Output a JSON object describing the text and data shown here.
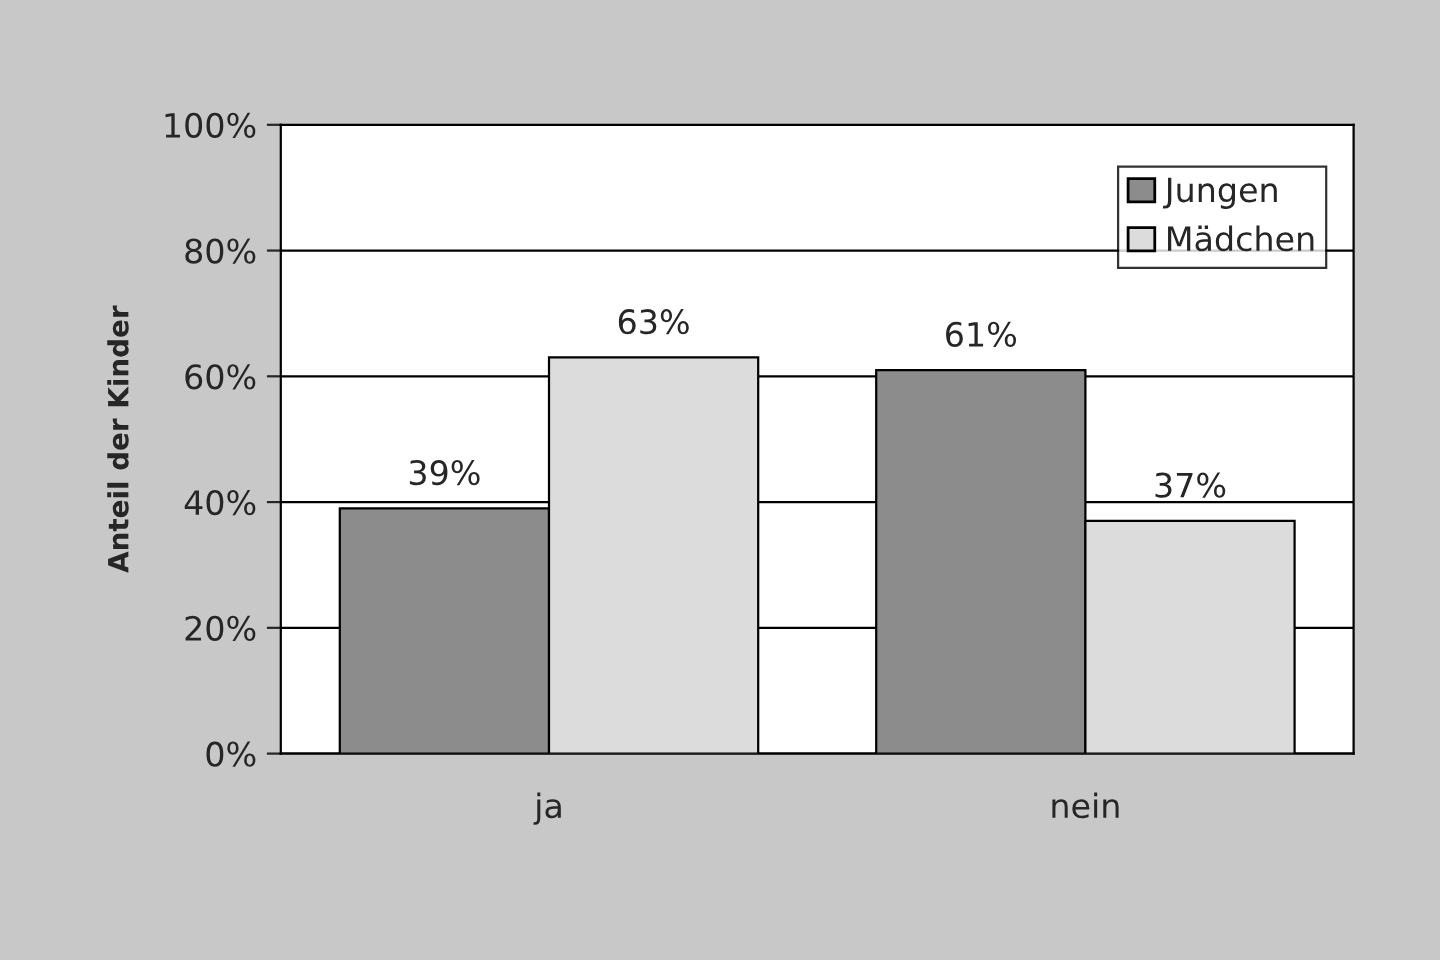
{
  "chart_data": {
    "type": "bar",
    "ylabel": "Anteil der Kinder",
    "categories": [
      "ja",
      "nein"
    ],
    "series": [
      {
        "name": "Jungen",
        "color": "#8c8c8c",
        "values": [
          39,
          61
        ],
        "value_labels": [
          "39%",
          "61%"
        ]
      },
      {
        "name": "Mädchen",
        "color": "#dcdcdc",
        "values": [
          63,
          37
        ],
        "value_labels": [
          "63%",
          "37%"
        ]
      }
    ],
    "ylim": [
      0,
      100
    ],
    "yticks": [
      {
        "value": 0,
        "label": "0%"
      },
      {
        "value": 20,
        "label": "20%"
      },
      {
        "value": 40,
        "label": "40%"
      },
      {
        "value": 60,
        "label": "60%"
      },
      {
        "value": 80,
        "label": "80%"
      },
      {
        "value": 100,
        "label": "100%"
      }
    ],
    "grid": "y",
    "legend": "top right"
  }
}
